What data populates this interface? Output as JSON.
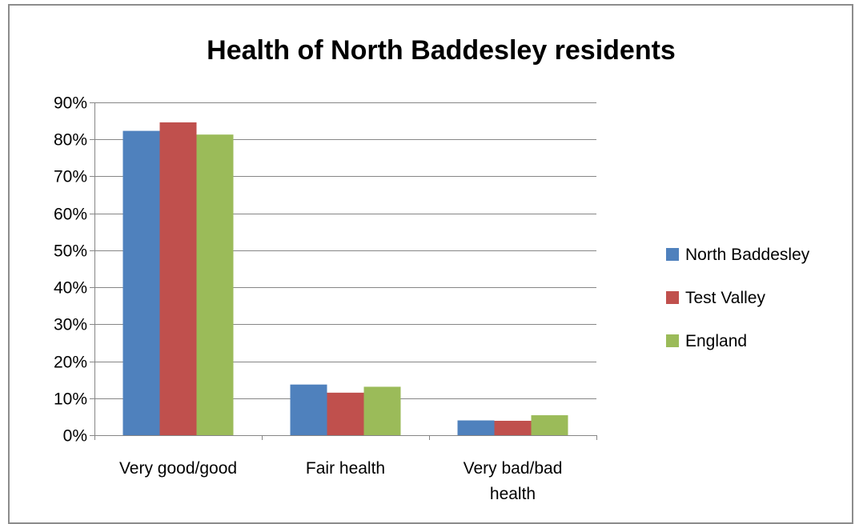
{
  "chart_data": {
    "type": "bar",
    "title": "Health of North Baddesley residents",
    "categories": [
      [
        "Very good/good"
      ],
      [
        "Fair health"
      ],
      [
        "Very bad/bad",
        "health"
      ]
    ],
    "series": [
      {
        "name": "North Baddesley",
        "color": "#4f81bd",
        "values": [
          0.823,
          0.137,
          0.04
        ]
      },
      {
        "name": "Test Valley",
        "color": "#c0504d",
        "values": [
          0.846,
          0.115,
          0.039
        ]
      },
      {
        "name": "England",
        "color": "#9bbb59",
        "values": [
          0.813,
          0.131,
          0.054
        ]
      }
    ],
    "ylim": [
      0,
      0.9
    ],
    "yticks": [
      0,
      0.1,
      0.2,
      0.3,
      0.4,
      0.5,
      0.6,
      0.7,
      0.8,
      0.9
    ],
    "ytick_labels": [
      "0%",
      "10%",
      "20%",
      "30%",
      "40%",
      "50%",
      "60%",
      "70%",
      "80%",
      "90%"
    ],
    "grid": true,
    "legend_position": "right"
  }
}
